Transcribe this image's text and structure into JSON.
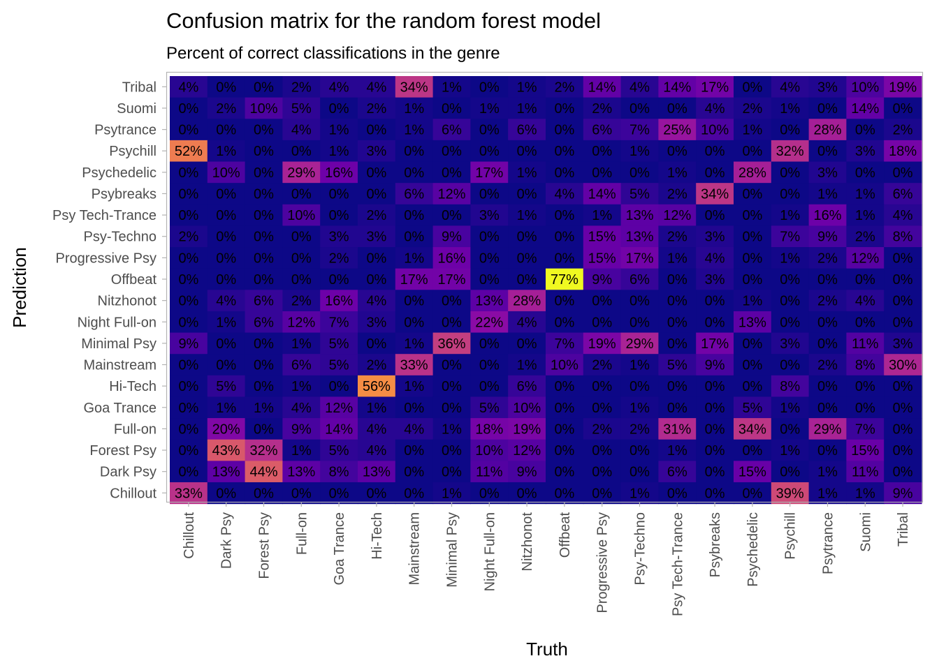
{
  "chart_data": {
    "type": "heatmap",
    "title": "Confusion matrix for the random forest model",
    "subtitle": "Percent of correct classifications in the genre",
    "xlabel": "Truth",
    "ylabel": "Prediction",
    "x_categories": [
      "Chillout",
      "Dark Psy",
      "Forest Psy",
      "Full-on",
      "Goa Trance",
      "Hi-Tech",
      "Mainstream",
      "Minimal Psy",
      "Night Full-on",
      "Nitzhonot",
      "Offbeat",
      "Progressive Psy",
      "Psy-Techno",
      "Psy Tech-Trance",
      "Psybreaks",
      "Psychedelic",
      "Psychill",
      "Psytrance",
      "Suomi",
      "Tribal"
    ],
    "y_categories": [
      "Tribal",
      "Suomi",
      "Psytrance",
      "Psychill",
      "Psychedelic",
      "Psybreaks",
      "Psy Tech-Trance",
      "Psy-Techno",
      "Progressive Psy",
      "Offbeat",
      "Nitzhonot",
      "Night Full-on",
      "Minimal Psy",
      "Mainstream",
      "Hi-Tech",
      "Goa Trance",
      "Full-on",
      "Forest Psy",
      "Dark Psy",
      "Chillout"
    ],
    "value_unit": "%",
    "values": [
      [
        4,
        0,
        0,
        2,
        4,
        4,
        34,
        1,
        0,
        1,
        2,
        14,
        4,
        14,
        17,
        0,
        4,
        3,
        10,
        19
      ],
      [
        0,
        2,
        10,
        5,
        0,
        2,
        1,
        0,
        1,
        1,
        0,
        2,
        0,
        0,
        4,
        2,
        1,
        0,
        14,
        0
      ],
      [
        0,
        0,
        0,
        4,
        1,
        0,
        1,
        6,
        0,
        6,
        0,
        6,
        7,
        25,
        10,
        1,
        0,
        28,
        0,
        2
      ],
      [
        52,
        1,
        0,
        0,
        1,
        3,
        0,
        0,
        0,
        0,
        0,
        0,
        1,
        0,
        0,
        0,
        32,
        0,
        3,
        18
      ],
      [
        0,
        10,
        0,
        29,
        16,
        0,
        0,
        0,
        17,
        1,
        0,
        0,
        0,
        1,
        0,
        28,
        0,
        3,
        0,
        0
      ],
      [
        0,
        0,
        0,
        0,
        0,
        0,
        6,
        12,
        0,
        0,
        4,
        14,
        5,
        2,
        34,
        0,
        0,
        1,
        1,
        6
      ],
      [
        0,
        0,
        0,
        10,
        0,
        2,
        0,
        0,
        3,
        1,
        0,
        1,
        13,
        12,
        0,
        0,
        1,
        16,
        1,
        4
      ],
      [
        2,
        0,
        0,
        0,
        3,
        3,
        0,
        9,
        0,
        0,
        0,
        15,
        13,
        2,
        3,
        0,
        7,
        9,
        2,
        8
      ],
      [
        0,
        0,
        0,
        0,
        2,
        0,
        1,
        16,
        0,
        0,
        0,
        15,
        17,
        1,
        4,
        0,
        1,
        2,
        12,
        0
      ],
      [
        0,
        0,
        0,
        0,
        0,
        0,
        17,
        17,
        0,
        0,
        77,
        9,
        6,
        0,
        3,
        0,
        0,
        0,
        0,
        0
      ],
      [
        0,
        4,
        6,
        2,
        16,
        4,
        0,
        0,
        13,
        28,
        0,
        0,
        0,
        0,
        0,
        1,
        0,
        2,
        4,
        0
      ],
      [
        0,
        1,
        6,
        12,
        7,
        3,
        0,
        0,
        22,
        4,
        0,
        0,
        0,
        0,
        0,
        13,
        0,
        0,
        0,
        0
      ],
      [
        9,
        0,
        0,
        1,
        5,
        0,
        1,
        36,
        0,
        0,
        7,
        19,
        29,
        0,
        17,
        0,
        3,
        0,
        11,
        3
      ],
      [
        0,
        0,
        0,
        6,
        5,
        2,
        33,
        0,
        0,
        1,
        10,
        2,
        1,
        5,
        9,
        0,
        0,
        2,
        8,
        30
      ],
      [
        0,
        5,
        0,
        1,
        0,
        56,
        1,
        0,
        0,
        6,
        0,
        0,
        0,
        0,
        0,
        0,
        8,
        0,
        0,
        0
      ],
      [
        0,
        1,
        1,
        4,
        12,
        1,
        0,
        0,
        5,
        10,
        0,
        0,
        1,
        0,
        0,
        5,
        1,
        0,
        0,
        0
      ],
      [
        0,
        20,
        0,
        9,
        14,
        4,
        4,
        1,
        18,
        19,
        0,
        2,
        2,
        31,
        0,
        34,
        0,
        29,
        7,
        0
      ],
      [
        0,
        43,
        32,
        1,
        5,
        4,
        0,
        0,
        10,
        12,
        0,
        0,
        0,
        1,
        0,
        0,
        1,
        0,
        15,
        0
      ],
      [
        0,
        13,
        44,
        13,
        8,
        13,
        0,
        0,
        11,
        9,
        0,
        0,
        0,
        6,
        0,
        15,
        0,
        1,
        11,
        0
      ],
      [
        33,
        0,
        0,
        0,
        0,
        0,
        0,
        1,
        0,
        0,
        0,
        0,
        1,
        0,
        0,
        0,
        39,
        1,
        1,
        9
      ]
    ],
    "color_scale": "plasma",
    "value_range": [
      0,
      77
    ],
    "grid": false,
    "legend": "none"
  }
}
